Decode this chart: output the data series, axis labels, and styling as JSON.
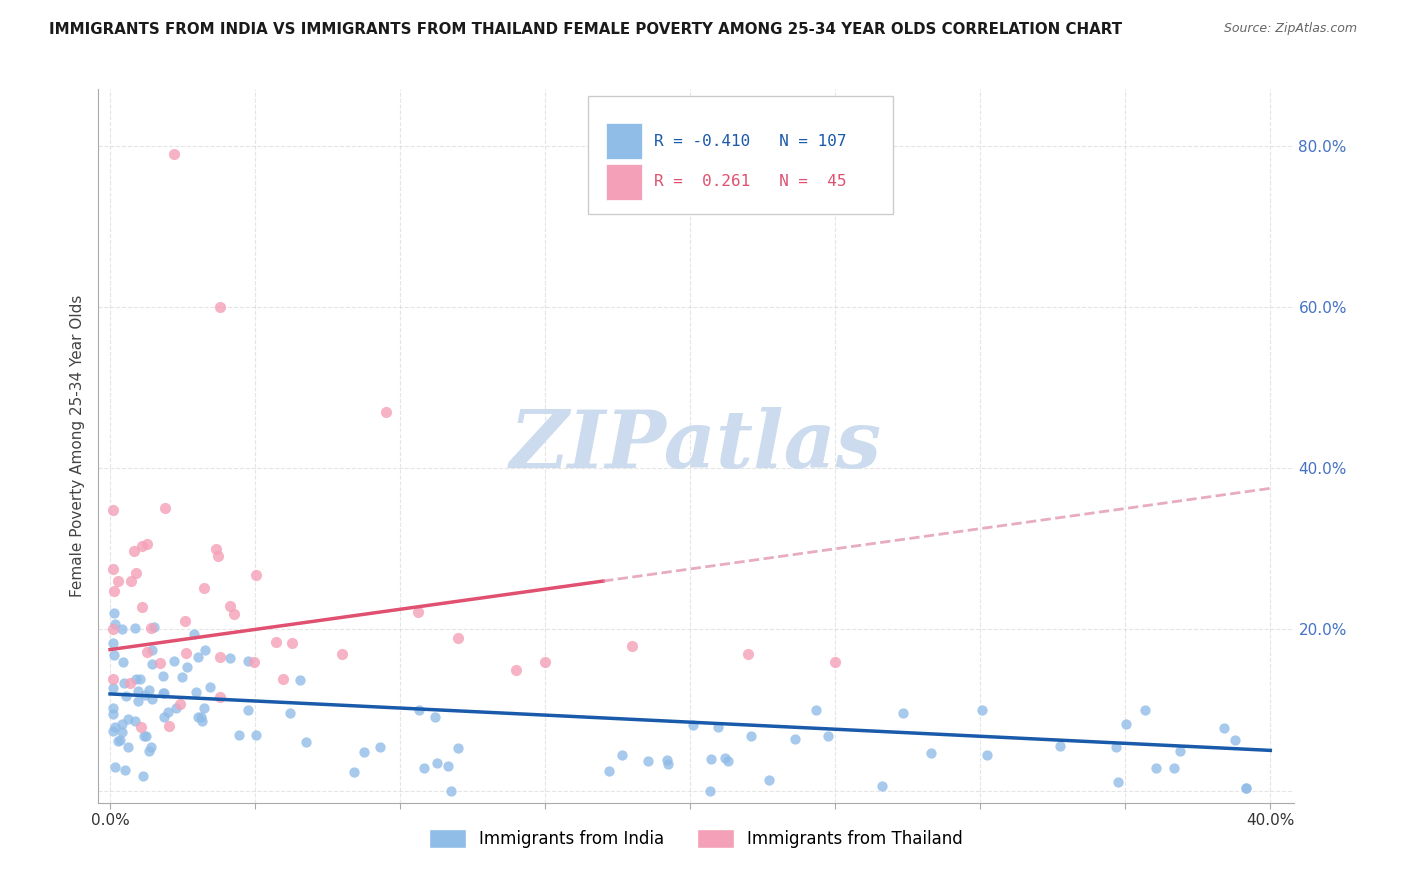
{
  "title": "IMMIGRANTS FROM INDIA VS IMMIGRANTS FROM THAILAND FEMALE POVERTY AMONG 25-34 YEAR OLDS CORRELATION CHART",
  "source": "Source: ZipAtlas.com",
  "ylabel": "Female Poverty Among 25-34 Year Olds",
  "india_R": -0.41,
  "india_N": 107,
  "thailand_R": 0.261,
  "thailand_N": 45,
  "india_color": "#90bce8",
  "thailand_color": "#f4a0b8",
  "india_line_color": "#1a5aaa",
  "thailand_line_color": "#e05070",
  "thailand_dash_color": "#e090a8",
  "watermark_color": "#ccdcee",
  "background_color": "#ffffff",
  "legend_box_color": "#ffffff",
  "legend_border_color": "#cccccc",
  "india_text_color": "#1a5aaa",
  "thailand_text_color": "#e05070",
  "right_tick_color": "#4472c4",
  "title_color": "#1a1a1a",
  "source_color": "#666666",
  "ylabel_color": "#444444",
  "grid_color": "#cccccc",
  "spine_color": "#aaaaaa"
}
